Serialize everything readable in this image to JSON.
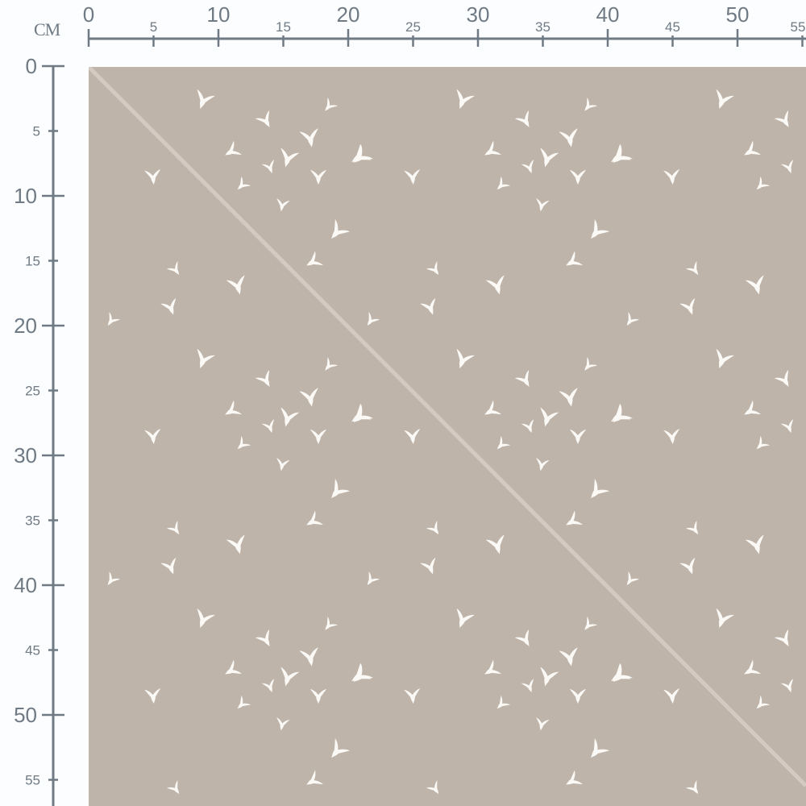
{
  "ruler": {
    "unit": "CM",
    "top_labels": [
      "0",
      "5",
      "10",
      "15",
      "20",
      "25",
      "30",
      "35",
      "40",
      "45",
      "50",
      "55"
    ],
    "left_labels": [
      "0",
      "5",
      "10",
      "15",
      "20",
      "25",
      "30",
      "35",
      "40",
      "45",
      "50",
      "55"
    ],
    "color": "#6f7a84"
  },
  "fabric": {
    "pattern": "white birds in flight",
    "background_color": "#bfb4a9",
    "motif_color": "#fbf9f6",
    "fold_line_color": "#d8cfc6",
    "icon": "bird-icon"
  }
}
